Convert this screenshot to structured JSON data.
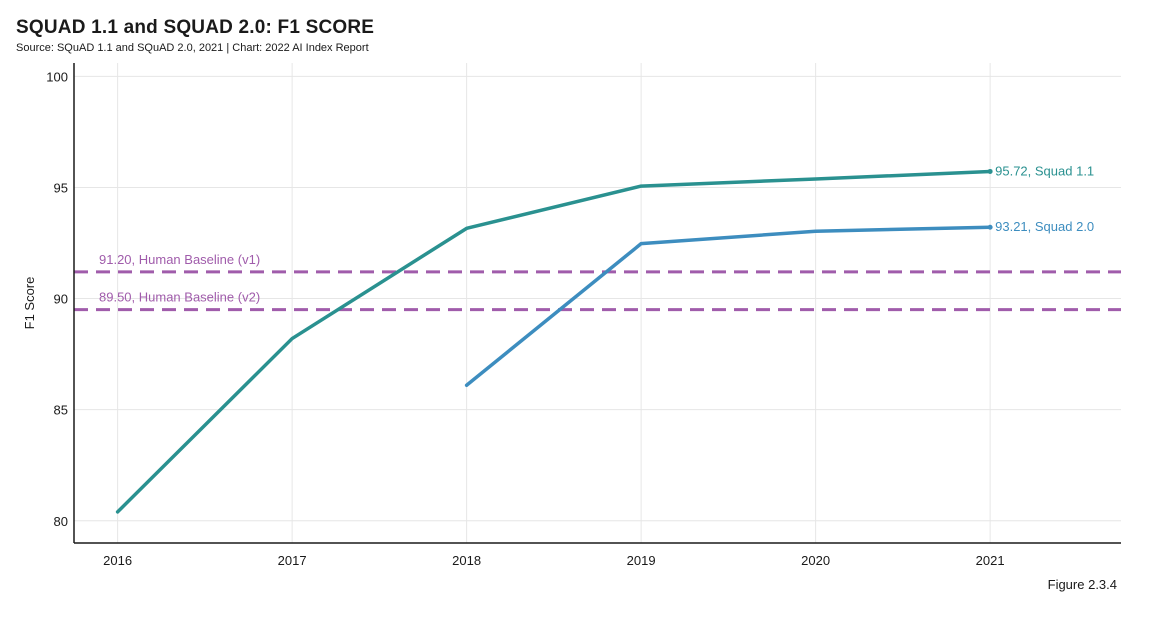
{
  "title": "SQUAD 1.1 and SQUAD 2.0: F1 SCORE",
  "subtitle": "Source: SQuAD 1.1 and SQuAD 2.0, 2021 | Chart: 2022 AI Index Report",
  "figure_label": "Figure 2.3.4",
  "chart_data": {
    "type": "line",
    "title": "SQUAD 1.1 and SQUAD 2.0: F1 SCORE",
    "xlabel": "",
    "ylabel": "F1 Score",
    "x": [
      2016,
      2017,
      2018,
      2019,
      2020,
      2021
    ],
    "xlim": [
      2015.75,
      2021.75
    ],
    "ylim": [
      79,
      100.6
    ],
    "yticks": [
      80,
      85,
      90,
      95,
      100
    ],
    "grid": true,
    "series": [
      {
        "name": "Squad 1.1",
        "color": "#2a9190",
        "x": [
          2016,
          2017,
          2018,
          2019,
          2020,
          2021
        ],
        "values": [
          80.4,
          88.2,
          93.16,
          95.06,
          95.38,
          95.72
        ],
        "end_label": "95.72, Squad 1.1"
      },
      {
        "name": "Squad 2.0",
        "color": "#3d8dbf",
        "x": [
          2018,
          2019,
          2020,
          2021
        ],
        "values": [
          86.1,
          92.47,
          93.03,
          93.21
        ],
        "end_label": "93.21, Squad 2.0"
      }
    ],
    "reference_lines": [
      {
        "value": 91.2,
        "label": "91.20, Human Baseline (v1)",
        "color": "#a05cab"
      },
      {
        "value": 89.5,
        "label": "89.50, Human Baseline (v2)",
        "color": "#a05cab"
      }
    ]
  }
}
